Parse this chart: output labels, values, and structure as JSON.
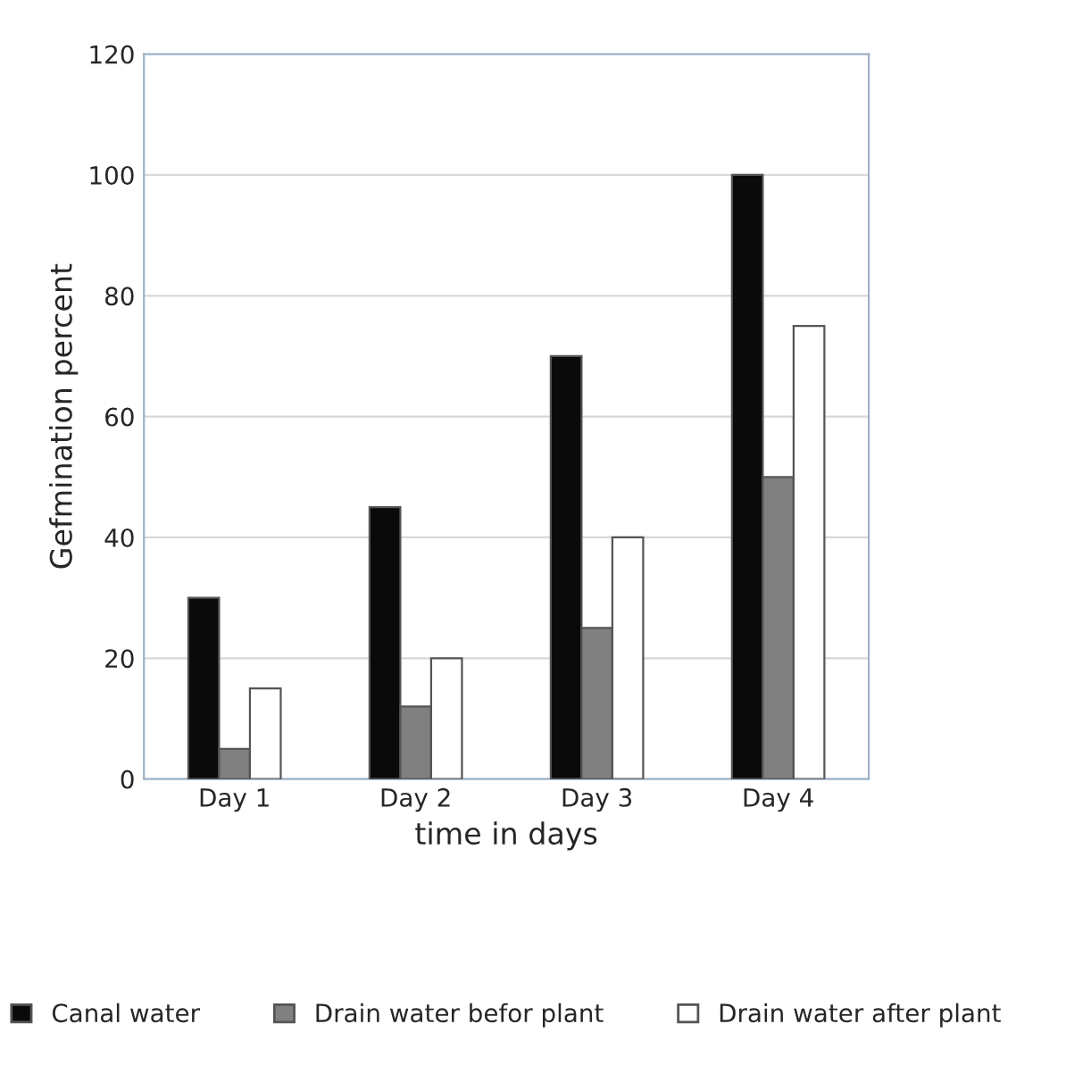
{
  "chart_data": {
    "type": "bar",
    "xlabel": "time in days",
    "ylabel": "Gefmination percent",
    "categories": [
      "Day 1",
      "Day 2",
      "Day 3",
      "Day 4"
    ],
    "series": [
      {
        "name": "Canal water",
        "color": "#0a0a0a",
        "values": [
          30,
          45,
          70,
          100
        ]
      },
      {
        "name": "Drain water befor plant",
        "color": "#808080",
        "values": [
          5,
          12,
          25,
          50
        ]
      },
      {
        "name": "Drain water after plant",
        "color": "#ffffff",
        "values": [
          15,
          20,
          40,
          75
        ]
      }
    ],
    "ylim": [
      0,
      120
    ],
    "yticks": [
      0,
      20,
      40,
      60,
      80,
      100,
      120
    ],
    "grid": "y",
    "legend": "bottom"
  }
}
